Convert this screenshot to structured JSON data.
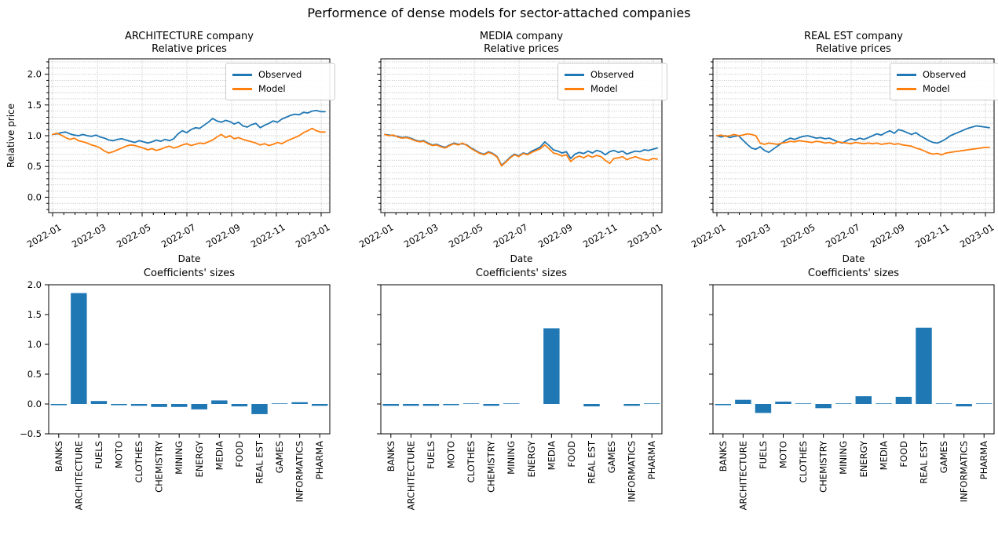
{
  "suptitle": "Performence of dense models for sector-attached companies",
  "labels": {
    "date": "Date",
    "relative_price": "Relative price",
    "coefficients": "Coefficients' sizes"
  },
  "legend": {
    "observed": "Observed",
    "model": "Model"
  },
  "colors": {
    "observed": "#1f77b4",
    "model": "#ff7f0e",
    "bar": "#1f77b4",
    "grid": "#b8b8b8",
    "axes": "#000000"
  },
  "panels": [
    {
      "title_line1": "ARCHITECTURE company",
      "title_line2": "Relative prices"
    },
    {
      "title_line1": "MEDIA company",
      "title_line2": "Relative prices"
    },
    {
      "title_line1": "REAL EST company",
      "title_line2": "Relative prices"
    }
  ],
  "chart_data": [
    {
      "type": "line",
      "col": 0,
      "row": "top",
      "title": "ARCHITECTURE company / Relative prices",
      "xlabel": "Date",
      "ylabel": "Relative price",
      "ylim": [
        -0.25,
        2.25
      ],
      "yticks": [
        0.0,
        0.5,
        1.0,
        1.5,
        2.0
      ],
      "y_minor_step": 0.1,
      "grid": "dotted",
      "xticklabels": [
        "2022-01",
        "2022-03",
        "2022-05",
        "2022-07",
        "2022-09",
        "2022-11",
        "2023-01"
      ],
      "legend_position": "upper right",
      "series": [
        {
          "name": "Observed",
          "color": "#1f77b4",
          "values": [
            1.02,
            1.03,
            1.05,
            1.06,
            1.03,
            1.01,
            1.0,
            1.02,
            1.0,
            0.99,
            1.01,
            0.98,
            0.96,
            0.93,
            0.92,
            0.94,
            0.95,
            0.93,
            0.91,
            0.89,
            0.92,
            0.9,
            0.88,
            0.9,
            0.93,
            0.91,
            0.94,
            0.92,
            0.95,
            1.03,
            1.08,
            1.05,
            1.1,
            1.13,
            1.12,
            1.17,
            1.22,
            1.28,
            1.24,
            1.22,
            1.25,
            1.23,
            1.19,
            1.22,
            1.16,
            1.14,
            1.18,
            1.2,
            1.13,
            1.17,
            1.2,
            1.24,
            1.22,
            1.27,
            1.3,
            1.33,
            1.35,
            1.34,
            1.38,
            1.37,
            1.4,
            1.41,
            1.39,
            1.39
          ]
        },
        {
          "name": "Model",
          "color": "#ff7f0e",
          "values": [
            1.02,
            1.04,
            1.01,
            0.97,
            0.94,
            0.96,
            0.92,
            0.9,
            0.88,
            0.85,
            0.83,
            0.8,
            0.75,
            0.72,
            0.74,
            0.77,
            0.8,
            0.83,
            0.85,
            0.84,
            0.82,
            0.8,
            0.77,
            0.79,
            0.76,
            0.78,
            0.81,
            0.83,
            0.8,
            0.82,
            0.85,
            0.87,
            0.84,
            0.86,
            0.88,
            0.87,
            0.9,
            0.93,
            0.98,
            1.02,
            0.97,
            1.0,
            0.95,
            0.97,
            0.94,
            0.92,
            0.9,
            0.88,
            0.85,
            0.87,
            0.84,
            0.86,
            0.89,
            0.87,
            0.91,
            0.94,
            0.97,
            1.0,
            1.05,
            1.08,
            1.12,
            1.08,
            1.06,
            1.06
          ]
        }
      ]
    },
    {
      "type": "line",
      "col": 1,
      "row": "top",
      "title": "MEDIA company / Relative prices",
      "xlabel": "Date",
      "ylabel": "",
      "ylim": [
        -0.25,
        2.25
      ],
      "yticks": [
        0.0,
        0.5,
        1.0,
        1.5,
        2.0
      ],
      "y_minor_step": 0.1,
      "grid": "dotted",
      "xticklabels": [
        "2022-01",
        "2022-03",
        "2022-05",
        "2022-07",
        "2022-09",
        "2022-11",
        "2023-01"
      ],
      "legend_position": "upper right",
      "series": [
        {
          "name": "Observed",
          "color": "#1f77b4",
          "values": [
            1.02,
            1.01,
            1.0,
            0.99,
            0.97,
            0.98,
            0.96,
            0.93,
            0.91,
            0.92,
            0.88,
            0.85,
            0.86,
            0.83,
            0.81,
            0.85,
            0.88,
            0.86,
            0.87,
            0.85,
            0.8,
            0.76,
            0.72,
            0.7,
            0.74,
            0.71,
            0.66,
            0.52,
            0.58,
            0.65,
            0.7,
            0.67,
            0.72,
            0.7,
            0.75,
            0.78,
            0.82,
            0.9,
            0.84,
            0.77,
            0.75,
            0.72,
            0.74,
            0.63,
            0.7,
            0.73,
            0.71,
            0.75,
            0.72,
            0.76,
            0.74,
            0.69,
            0.74,
            0.76,
            0.73,
            0.75,
            0.7,
            0.73,
            0.75,
            0.74,
            0.77,
            0.76,
            0.78,
            0.8
          ]
        },
        {
          "name": "Model",
          "color": "#ff7f0e",
          "values": [
            1.02,
            1.0,
            1.01,
            0.98,
            0.96,
            0.97,
            0.95,
            0.92,
            0.9,
            0.91,
            0.87,
            0.84,
            0.85,
            0.82,
            0.8,
            0.84,
            0.87,
            0.85,
            0.88,
            0.84,
            0.79,
            0.75,
            0.71,
            0.69,
            0.73,
            0.7,
            0.65,
            0.51,
            0.57,
            0.64,
            0.69,
            0.66,
            0.71,
            0.69,
            0.73,
            0.76,
            0.79,
            0.85,
            0.79,
            0.72,
            0.7,
            0.67,
            0.69,
            0.58,
            0.64,
            0.67,
            0.64,
            0.68,
            0.65,
            0.68,
            0.66,
            0.6,
            0.55,
            0.63,
            0.64,
            0.66,
            0.61,
            0.64,
            0.66,
            0.63,
            0.61,
            0.6,
            0.63,
            0.62
          ]
        }
      ]
    },
    {
      "type": "line",
      "col": 2,
      "row": "top",
      "title": "REAL EST company / Relative prices",
      "xlabel": "Date",
      "ylabel": "",
      "ylim": [
        -0.25,
        2.25
      ],
      "yticks": [
        0.0,
        0.5,
        1.0,
        1.5,
        2.0
      ],
      "y_minor_step": 0.1,
      "grid": "dotted",
      "xticklabels": [
        "2022-01",
        "2022-03",
        "2022-05",
        "2022-07",
        "2022-09",
        "2022-11",
        "2023-01"
      ],
      "legend_position": "upper right",
      "series": [
        {
          "name": "Observed",
          "color": "#1f77b4",
          "values": [
            1.0,
            0.98,
            1.0,
            0.97,
            0.99,
            1.0,
            0.93,
            0.86,
            0.8,
            0.78,
            0.82,
            0.76,
            0.73,
            0.78,
            0.83,
            0.88,
            0.93,
            0.96,
            0.94,
            0.97,
            0.99,
            1.0,
            0.98,
            0.96,
            0.97,
            0.95,
            0.96,
            0.93,
            0.9,
            0.88,
            0.92,
            0.95,
            0.93,
            0.96,
            0.94,
            0.97,
            1.0,
            1.03,
            1.01,
            1.05,
            1.08,
            1.04,
            1.1,
            1.08,
            1.05,
            1.02,
            1.05,
            1.0,
            0.96,
            0.92,
            0.89,
            0.88,
            0.91,
            0.95,
            1.0,
            1.03,
            1.06,
            1.09,
            1.12,
            1.14,
            1.16,
            1.15,
            1.14,
            1.13
          ]
        },
        {
          "name": "Model",
          "color": "#ff7f0e",
          "values": [
            1.0,
            1.01,
            0.99,
            1.0,
            1.02,
            1.0,
            1.01,
            1.03,
            1.02,
            1.0,
            0.88,
            0.86,
            0.88,
            0.87,
            0.86,
            0.88,
            0.89,
            0.91,
            0.9,
            0.92,
            0.91,
            0.9,
            0.89,
            0.91,
            0.9,
            0.88,
            0.89,
            0.87,
            0.9,
            0.89,
            0.88,
            0.87,
            0.89,
            0.88,
            0.87,
            0.88,
            0.87,
            0.88,
            0.86,
            0.87,
            0.88,
            0.86,
            0.87,
            0.85,
            0.84,
            0.83,
            0.8,
            0.78,
            0.75,
            0.72,
            0.7,
            0.71,
            0.69,
            0.72,
            0.73,
            0.74,
            0.75,
            0.76,
            0.77,
            0.78,
            0.79,
            0.8,
            0.81,
            0.81
          ]
        }
      ]
    },
    {
      "type": "bar",
      "col": 0,
      "row": "bottom",
      "title": "Coefficients' sizes",
      "ylim": [
        -0.5,
        2.0
      ],
      "yticks": [
        -0.5,
        0.0,
        0.5,
        1.0,
        1.5,
        2.0
      ],
      "bar_color": "#1f77b4",
      "categories": [
        "BANKS",
        "ARCHITECTURE",
        "FUELS",
        "MOTO",
        "CLOTHES",
        "CHEMISTRY",
        "MINING",
        "ENERGY",
        "MEDIA",
        "FOOD",
        "REAL EST",
        "GAMES",
        "INFORMATICS",
        "PHARMA"
      ],
      "values": [
        -0.02,
        1.86,
        0.05,
        -0.02,
        -0.03,
        -0.05,
        -0.05,
        -0.09,
        0.06,
        -0.04,
        -0.17,
        0.01,
        0.03,
        -0.03
      ]
    },
    {
      "type": "bar",
      "col": 1,
      "row": "bottom",
      "title": "Coefficients' sizes",
      "ylim": [
        -0.5,
        2.0
      ],
      "yticks": [
        -0.5,
        0.0,
        0.5,
        1.0,
        1.5,
        2.0
      ],
      "bar_color": "#1f77b4",
      "categories": [
        "BANKS",
        "ARCHITECTURE",
        "FUELS",
        "MOTO",
        "CLOTHES",
        "CHEMISTRY",
        "MINING",
        "ENERGY",
        "MEDIA",
        "FOOD",
        "REAL EST",
        "GAMES",
        "INFORMATICS",
        "PHARMA"
      ],
      "values": [
        -0.03,
        -0.03,
        -0.03,
        -0.02,
        0.01,
        -0.03,
        0.01,
        0.0,
        1.27,
        0.0,
        -0.04,
        0.0,
        -0.03,
        0.01
      ]
    },
    {
      "type": "bar",
      "col": 2,
      "row": "bottom",
      "title": "Coefficients' sizes",
      "ylim": [
        -0.5,
        2.0
      ],
      "yticks": [
        -0.5,
        0.0,
        0.5,
        1.0,
        1.5,
        2.0
      ],
      "bar_color": "#1f77b4",
      "categories": [
        "BANKS",
        "ARCHITECTURE",
        "FUELS",
        "MOTO",
        "CLOTHES",
        "CHEMISTRY",
        "MINING",
        "ENERGY",
        "MEDIA",
        "FOOD",
        "REAL EST",
        "GAMES",
        "INFORMATICS",
        "PHARMA"
      ],
      "values": [
        -0.02,
        0.07,
        -0.15,
        0.04,
        0.01,
        -0.07,
        0.01,
        0.13,
        0.01,
        0.12,
        1.28,
        0.01,
        -0.04,
        0.01
      ]
    }
  ]
}
